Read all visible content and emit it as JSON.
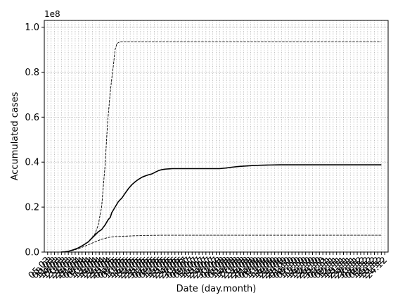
{
  "chart_data": {
    "type": "line",
    "xlabel": "Date (day.month)",
    "ylabel": "Accumulated cases",
    "y_offset_label": "1e8",
    "ylim": [
      0,
      1.03
    ],
    "y_ticks": [
      0.0,
      0.2,
      0.4,
      0.6,
      0.8,
      1.0
    ],
    "y_tick_labels": [
      "0.0",
      "0.2",
      "0.4",
      "0.6",
      "0.8",
      "1.0"
    ],
    "x_tick_labels": [
      "05.03",
      "08.03",
      "11.03",
      "14.03",
      "17.03",
      "20.03",
      "23.03",
      "26.03",
      "29.03",
      "01.04",
      "04.04",
      "07.04",
      "10.04",
      "13.04",
      "16.04",
      "19.04",
      "22.04",
      "25.04",
      "28.04",
      "01.05",
      "04.05",
      "07.05",
      "10.05",
      "13.05",
      "16.05",
      "19.05",
      "22.05",
      "25.05",
      "28.05",
      "31.05",
      "03.06",
      "06.06",
      "09.06",
      "12.06",
      "15.06",
      "18.06",
      "21.06",
      "24.06",
      "27.06",
      "30.06",
      "03.07",
      "06.07",
      "09.07",
      "12.07",
      "15.07",
      "18.07",
      "21.07",
      "24.07",
      "27.07",
      "30.07",
      "02.08",
      "05.08",
      "08.08",
      "11.08",
      "14.08",
      "17.08",
      "20.08",
      "23.08",
      "26.08",
      "29.08",
      "01.09",
      "04.09",
      "07.09",
      "10.09",
      "13.09",
      "16.09",
      "19.09",
      "22.09",
      "25.09",
      "28.09",
      "01.10",
      "04.10",
      "07.10",
      "10.10",
      "13.10",
      "16.10",
      "19.10",
      "22.10",
      "25.10",
      "28.10",
      "31.10",
      "03.11",
      "06.11",
      "09.11",
      "12.11",
      "15.11",
      "18.11",
      "21.11",
      "24.11",
      "27.11",
      "30.11",
      "03.12",
      "06.12",
      "09.12",
      "12.12",
      "15.12",
      "18.12",
      "21.12",
      "24.12"
    ],
    "x_range": [
      0,
      102
    ],
    "grid": true,
    "series": [
      {
        "style": "solid",
        "color": "#000000",
        "x": [
          5,
          6,
          7,
          8,
          9,
          10,
          11,
          12,
          13,
          14,
          15,
          16,
          17,
          18,
          19,
          19.6,
          20,
          21,
          22,
          23,
          24,
          25,
          26,
          27,
          28,
          29,
          30,
          31,
          32,
          33,
          34,
          35,
          36,
          37,
          38,
          39,
          40,
          45,
          50,
          52,
          54,
          56,
          58,
          60,
          62,
          64,
          66,
          70,
          80,
          90,
          100
        ],
        "y": [
          0.0,
          0.001,
          0.003,
          0.007,
          0.012,
          0.018,
          0.026,
          0.035,
          0.045,
          0.06,
          0.075,
          0.09,
          0.1,
          0.12,
          0.145,
          0.155,
          0.175,
          0.2,
          0.225,
          0.24,
          0.262,
          0.283,
          0.3,
          0.313,
          0.324,
          0.333,
          0.339,
          0.344,
          0.348,
          0.356,
          0.363,
          0.367,
          0.369,
          0.37,
          0.371,
          0.371,
          0.371,
          0.371,
          0.371,
          0.371,
          0.374,
          0.378,
          0.381,
          0.383,
          0.385,
          0.386,
          0.387,
          0.388,
          0.388,
          0.388,
          0.388
        ]
      },
      {
        "style": "dashed",
        "color": "#000000",
        "x": [
          5,
          7,
          9,
          11,
          13,
          15,
          16,
          17,
          18,
          18.8,
          19.5,
          20,
          20.5,
          21,
          21.5,
          22,
          22.5,
          23,
          24,
          30,
          50,
          100
        ],
        "y": [
          0.0,
          0.003,
          0.01,
          0.025,
          0.045,
          0.08,
          0.12,
          0.2,
          0.38,
          0.58,
          0.7,
          0.77,
          0.83,
          0.9,
          0.925,
          0.932,
          0.934,
          0.935,
          0.935,
          0.935,
          0.935,
          0.935
        ]
      },
      {
        "style": "dashed",
        "color": "#000000",
        "x": [
          5,
          7,
          9,
          11,
          13,
          15,
          17,
          19,
          21,
          23,
          26,
          30,
          35,
          50,
          100
        ],
        "y": [
          0.0,
          0.003,
          0.01,
          0.02,
          0.032,
          0.045,
          0.057,
          0.065,
          0.069,
          0.07,
          0.072,
          0.074,
          0.075,
          0.075,
          0.075
        ]
      }
    ]
  }
}
